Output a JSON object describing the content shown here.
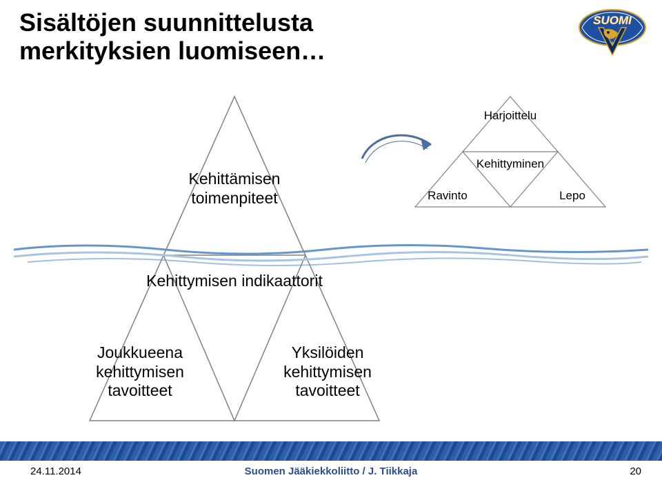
{
  "title_line1": "Sisältöjen suunnittelusta",
  "title_line2": "merkityksien luomiseen…",
  "footer": {
    "date": "24.11.2014",
    "center": "Suomen Jääkiekkoliitto / J. Tiikkaja",
    "page": "20"
  },
  "iceberg": {
    "tip": "Kehittämisen\ntoimenpiteet",
    "mid": "Kehittymisen indikaattorit",
    "left": "Joukkueena\nkehittymisen\ntavoitteet",
    "right": "Yksilöiden\nkehittymisen\ntavoitteet",
    "stroke": "#808080",
    "stroke_w": 1.5,
    "fill": "#ffffff"
  },
  "small_tri": {
    "top": "Harjoittelu",
    "mid": "Kehittyminen",
    "bl": "Ravinto",
    "br": "Lepo",
    "stroke": "#808080",
    "stroke_w": 1.2,
    "fill": "#ffffff"
  },
  "arrow": {
    "color": "#4a6fa0"
  },
  "water": {
    "c1": "#6595cc",
    "c2": "#a9c4e0"
  },
  "logo": {
    "blue": "#1e4fa3",
    "gold": "#d9a52b",
    "white": "#ffffff",
    "navy": "#0a2a66",
    "text": "SUOMI"
  }
}
